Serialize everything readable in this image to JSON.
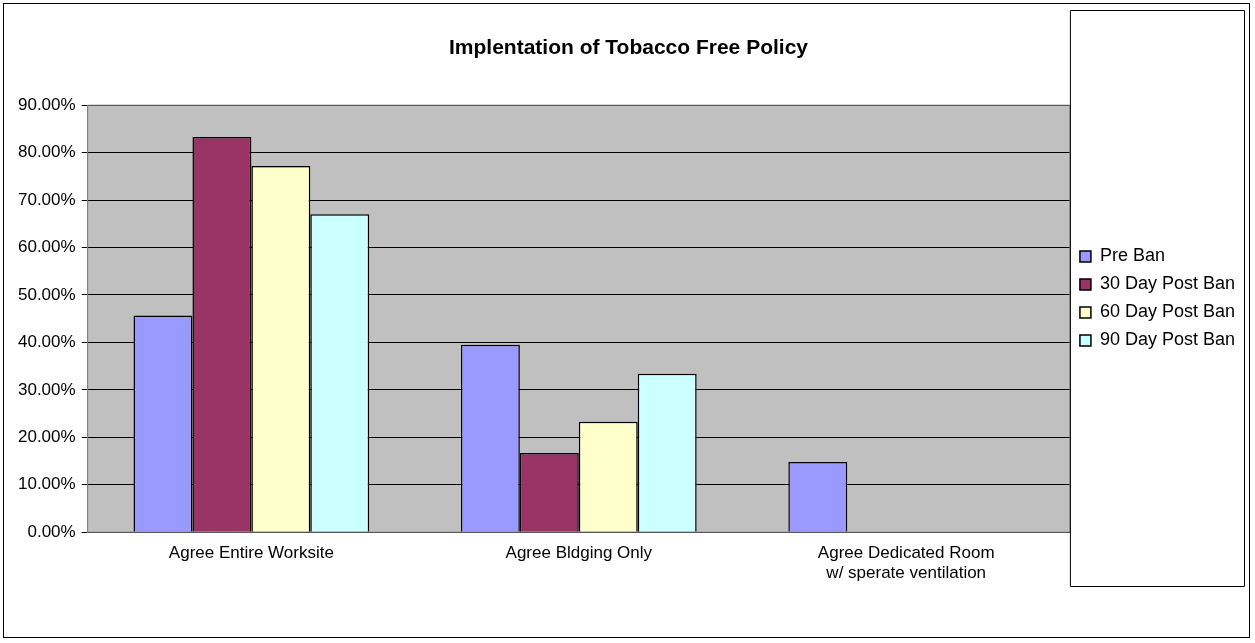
{
  "chart_data": {
    "type": "bar",
    "title": "Implentation of Tobacco Free Policy",
    "categories": [
      "Agree Entire Worksite",
      "Agree Bldging Only",
      "Agree Dedicated Room\nw/ sperate ventilation"
    ],
    "series": [
      {
        "name": "Pre Ban",
        "color": "#9999ff",
        "values": [
          45.7,
          39.5,
          14.8
        ]
      },
      {
        "name": "30 Day Post Ban",
        "color": "#993366",
        "values": [
          83.3,
          16.7,
          null
        ]
      },
      {
        "name": "60 Day Post Ban",
        "color": "#ffffcc",
        "values": [
          77.2,
          23.3,
          null
        ]
      },
      {
        "name": "90 Day Post Ban",
        "color": "#ccffff",
        "values": [
          67.0,
          33.4,
          null
        ]
      }
    ],
    "ylim": [
      0,
      90
    ],
    "yticks": [
      {
        "value": 0,
        "label": "0.00%"
      },
      {
        "value": 10,
        "label": "10.00%"
      },
      {
        "value": 20,
        "label": "20.00%"
      },
      {
        "value": 30,
        "label": "30.00%"
      },
      {
        "value": 40,
        "label": "40.00%"
      },
      {
        "value": 50,
        "label": "50.00%"
      },
      {
        "value": 60,
        "label": "60.00%"
      },
      {
        "value": 70,
        "label": "70.00%"
      },
      {
        "value": 80,
        "label": "80.00%"
      },
      {
        "value": 90,
        "label": "90.00%"
      }
    ],
    "grid": "y",
    "legend": "right"
  }
}
